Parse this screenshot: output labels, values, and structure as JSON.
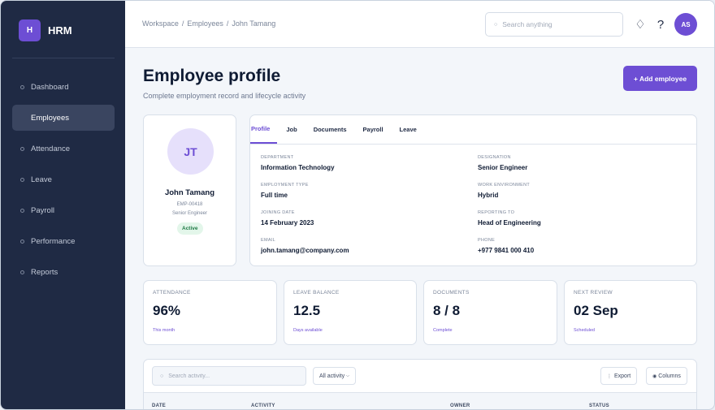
{
  "sidebar": {
    "logo_letter": "H",
    "brand": "HRM",
    "items": [
      {
        "label": "Dashboard"
      },
      {
        "label": "Employees"
      },
      {
        "label": "Attendance"
      },
      {
        "label": "Leave"
      },
      {
        "label": "Payroll"
      },
      {
        "label": "Performance"
      },
      {
        "label": "Reports"
      }
    ],
    "active_item": "Employees"
  },
  "topbar": {
    "breadcrumb": [
      "Workspace",
      "Employees",
      "John Tamang"
    ],
    "search_placeholder": "Search anything",
    "user_initials": "AS",
    "icons": [
      "diamond-icon",
      "help-icon"
    ]
  },
  "page": {
    "title": "Employee profile",
    "subtitle": "Complete employment record and lifecycle activity",
    "add_button": "+ Add employee"
  },
  "profile": {
    "initials": "JT",
    "name": "John Tamang",
    "employee_id": "EMP-00418",
    "role": "Senior Engineer",
    "status": "Active"
  },
  "details": {
    "tabs": [
      "Profile",
      "Job",
      "Documents",
      "Payroll",
      "Leave"
    ],
    "active_tab": "Profile",
    "fields": [
      {
        "label": "DEPARTMENT",
        "value": "Information Technology"
      },
      {
        "label": "DESIGNATION",
        "value": "Senior Engineer"
      },
      {
        "label": "EMPLOYMENT TYPE",
        "value": "Full time"
      },
      {
        "label": "WORK ENVIRONMENT",
        "value": "Hybrid"
      },
      {
        "label": "JOINING DATE",
        "value": "14 February 2023"
      },
      {
        "label": "REPORTING TO",
        "value": "Head of Engineering"
      },
      {
        "label": "EMAIL",
        "value": "john.tamang@company.com"
      },
      {
        "label": "PHONE",
        "value": "+977 9841 000 410"
      }
    ]
  },
  "stats": [
    {
      "label": "ATTENDANCE",
      "value": "96%",
      "note": "This month"
    },
    {
      "label": "LEAVE BALANCE",
      "value": "12.5",
      "note": "Days available"
    },
    {
      "label": "DOCUMENTS",
      "value": "8 / 8",
      "note": "Complete"
    },
    {
      "label": "NEXT REVIEW",
      "value": "02 Sep",
      "note": "Scheduled"
    }
  ],
  "activity": {
    "search_placeholder": "Search activity...",
    "filter": "All activity",
    "export": "Export",
    "columns": "Columns",
    "headers": [
      "DATE",
      "ACTIVITY",
      "OWNER",
      "STATUS"
    ]
  },
  "colors": {
    "accent": "#6d4ed4",
    "sidebar": "#1f2a44",
    "success": "#1f7a45"
  }
}
